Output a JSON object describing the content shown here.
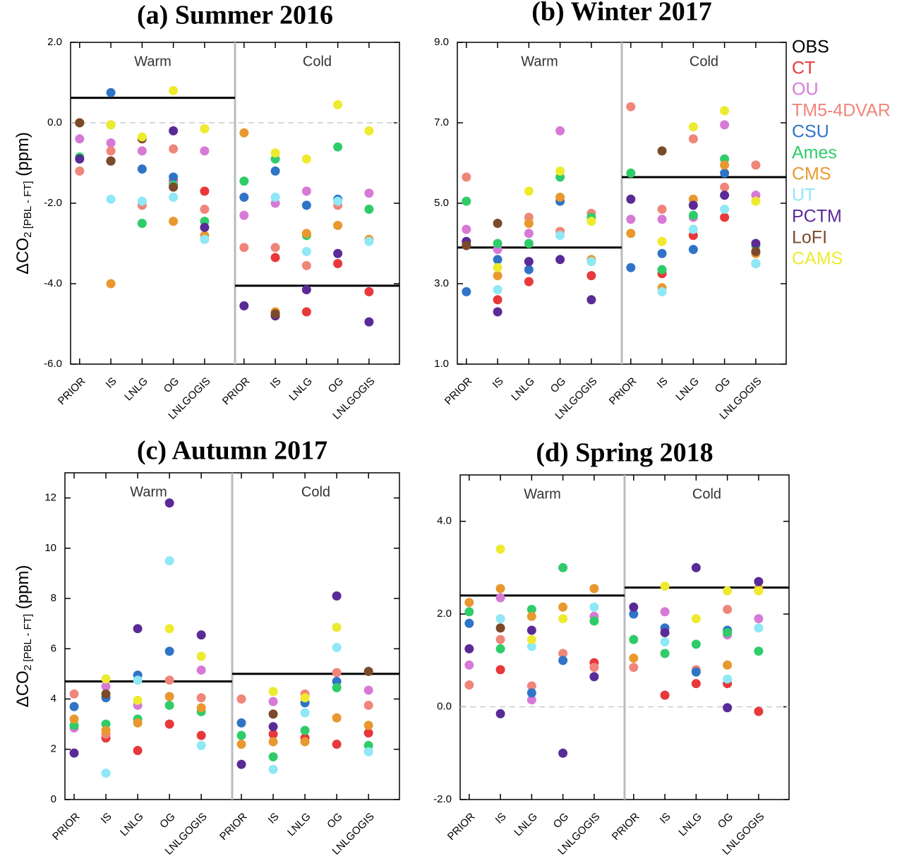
{
  "legend": [
    {
      "name": "OBS",
      "color": "#000000"
    },
    {
      "name": "CT",
      "color": "#e8383b"
    },
    {
      "name": "OU",
      "color": "#d67ad6"
    },
    {
      "name": "TM5-4DVAR",
      "color": "#f0857a"
    },
    {
      "name": "CSU",
      "color": "#2f74c6"
    },
    {
      "name": "Ames",
      "color": "#2fcc6a"
    },
    {
      "name": "CMS",
      "color": "#e8982e"
    },
    {
      "name": "UT",
      "color": "#8ee8f5"
    },
    {
      "name": "PCTM",
      "color": "#5a2a96"
    },
    {
      "name": "LoFI",
      "color": "#7a4a2a"
    },
    {
      "name": "CAMS",
      "color": "#eeea2e"
    }
  ],
  "y_label": {
    "main": "ΔCO",
    "sub": "2 [PBL - FT]",
    "unit": " (ppm)"
  },
  "chart_data": [
    {
      "type": "scatter",
      "title": "(a) Summer 2016",
      "regions": [
        "Warm",
        "Cold"
      ],
      "categories": [
        "PRIOR",
        "IS",
        "LNLG",
        "OG",
        "LNLGOGIS",
        "PRIOR",
        "IS",
        "LNLG",
        "OG",
        "LNLGOGIS"
      ],
      "ylim": [
        -6,
        2
      ],
      "yticks": [
        {
          "value": -6,
          "label": "-6.0"
        },
        {
          "value": -4,
          "label": "-4.0"
        },
        {
          "value": -2,
          "label": "-2.0"
        },
        {
          "value": 0,
          "label": "0.0"
        },
        {
          "value": 2,
          "label": "2.0"
        }
      ],
      "zero_line": true,
      "show_y_label": true,
      "show_legend": false,
      "obs": [
        0.62,
        -4.05
      ],
      "series": [
        {
          "values": [
            null,
            -0.95,
            null,
            -1.45,
            -1.7,
            null,
            -3.35,
            -4.7,
            -3.5,
            -4.2
          ]
        },
        {
          "values": [
            -0.4,
            -0.5,
            -0.7,
            -1.5,
            -0.7,
            -2.3,
            -2.0,
            -1.7,
            null,
            -1.75
          ]
        },
        {
          "values": [
            -1.2,
            -0.7,
            -2.05,
            -0.65,
            -2.15,
            -3.1,
            -3.1,
            -3.55,
            -2.05,
            null
          ]
        },
        {
          "values": [
            null,
            0.75,
            -1.15,
            -1.35,
            null,
            -1.85,
            -1.2,
            -2.05,
            -1.9,
            null
          ]
        },
        {
          "values": [
            -0.85,
            -0.05,
            -2.5,
            -1.55,
            -2.45,
            -1.45,
            -0.9,
            -2.8,
            -0.6,
            -2.15
          ]
        },
        {
          "values": [
            0.0,
            -4.0,
            null,
            -2.45,
            -2.8,
            -0.25,
            -4.7,
            -2.75,
            -2.55,
            -2.9
          ]
        },
        {
          "values": [
            null,
            -1.9,
            -1.95,
            -1.85,
            -2.9,
            null,
            -1.85,
            -3.2,
            -1.95,
            -2.95
          ]
        },
        {
          "values": [
            -0.9,
            -0.95,
            null,
            -0.2,
            -2.6,
            -4.55,
            -4.8,
            -4.15,
            -3.25,
            -4.95
          ]
        },
        {
          "values": [
            0.0,
            -0.95,
            -0.4,
            -1.6,
            null,
            null,
            -4.75,
            null,
            null,
            null
          ]
        },
        {
          "values": [
            null,
            -0.05,
            -0.35,
            0.8,
            -0.15,
            null,
            -0.75,
            -0.9,
            0.45,
            -0.2
          ]
        }
      ]
    },
    {
      "type": "scatter",
      "title": "(b) Winter 2017",
      "regions": [
        "Warm",
        "Cold"
      ],
      "categories": [
        "PRIOR",
        "IS",
        "LNLG",
        "OG",
        "LNLGOGIS",
        "PRIOR",
        "IS",
        "LNLG",
        "OG",
        "LNLGOGIS"
      ],
      "ylim": [
        1,
        9
      ],
      "yticks": [
        {
          "value": 1,
          "label": "1.0"
        },
        {
          "value": 3,
          "label": "3.0"
        },
        {
          "value": 5,
          "label": "5.0"
        },
        {
          "value": 7,
          "label": "7.0"
        },
        {
          "value": 9,
          "label": "9.0"
        }
      ],
      "zero_line": false,
      "show_y_label": false,
      "show_legend": true,
      "obs": [
        3.9,
        5.65
      ],
      "series": [
        {
          "values": [
            null,
            2.6,
            3.05,
            null,
            3.2,
            null,
            3.25,
            4.2,
            4.65,
            null
          ]
        },
        {
          "values": [
            4.35,
            3.85,
            4.25,
            6.8,
            null,
            4.6,
            4.6,
            4.65,
            6.95,
            5.2
          ]
        },
        {
          "values": [
            5.65,
            null,
            4.65,
            4.3,
            4.75,
            7.4,
            4.85,
            6.6,
            5.4,
            5.95
          ]
        },
        {
          "values": [
            2.8,
            3.6,
            3.35,
            5.05,
            null,
            3.4,
            3.75,
            3.85,
            5.75,
            3.5
          ]
        },
        {
          "values": [
            5.05,
            4.0,
            4.0,
            5.65,
            4.65,
            5.75,
            3.35,
            4.7,
            6.1,
            3.95
          ]
        },
        {
          "values": [
            3.95,
            3.2,
            4.5,
            5.15,
            3.6,
            4.25,
            2.9,
            5.1,
            5.95,
            3.75
          ]
        },
        {
          "values": [
            null,
            2.85,
            null,
            4.2,
            3.55,
            null,
            2.8,
            4.35,
            4.85,
            3.5
          ]
        },
        {
          "values": [
            4.05,
            2.3,
            3.55,
            3.6,
            2.6,
            5.1,
            null,
            4.95,
            5.2,
            4.0
          ]
        },
        {
          "values": [
            3.95,
            4.5,
            null,
            null,
            null,
            null,
            6.3,
            null,
            null,
            3.8
          ]
        },
        {
          "values": [
            null,
            3.4,
            5.3,
            5.8,
            4.55,
            null,
            4.05,
            6.9,
            7.3,
            5.05
          ]
        }
      ]
    },
    {
      "type": "scatter",
      "title": "(c) Autumn 2017",
      "regions": [
        "Warm",
        "Cold"
      ],
      "categories": [
        "PRIOR",
        "IS",
        "LNLG",
        "OG",
        "LNLGOGIS",
        "PRIOR",
        "IS",
        "LNLG",
        "OG",
        "LNLGOGIS"
      ],
      "ylim": [
        0,
        13
      ],
      "yticks": [
        0,
        2,
        4,
        6,
        8,
        10,
        12
      ],
      "zero_line": false,
      "show_y_label": true,
      "show_legend": false,
      "obs": [
        4.7,
        5.0
      ],
      "series": [
        {
          "values": [
            null,
            2.45,
            1.95,
            3.0,
            2.55,
            null,
            2.6,
            2.45,
            2.2,
            2.65
          ]
        },
        {
          "values": [
            2.85,
            4.5,
            3.75,
            null,
            5.15,
            null,
            3.9,
            null,
            null,
            4.35
          ]
        },
        {
          "values": [
            4.2,
            2.6,
            null,
            4.75,
            4.05,
            4.0,
            null,
            4.2,
            5.05,
            3.75
          ]
        },
        {
          "values": [
            3.7,
            4.05,
            4.95,
            5.9,
            null,
            3.05,
            null,
            3.85,
            4.7,
            null
          ]
        },
        {
          "values": [
            2.95,
            3.0,
            3.2,
            3.75,
            3.5,
            2.55,
            1.7,
            2.75,
            4.45,
            2.15
          ]
        },
        {
          "values": [
            3.2,
            2.75,
            3.05,
            4.1,
            3.65,
            2.2,
            2.3,
            2.3,
            3.25,
            2.95
          ]
        },
        {
          "values": [
            null,
            1.05,
            4.75,
            9.5,
            2.15,
            null,
            1.2,
            3.45,
            6.05,
            1.9
          ]
        },
        {
          "values": [
            1.85,
            null,
            6.8,
            11.8,
            6.55,
            1.4,
            2.9,
            null,
            8.1,
            null
          ]
        },
        {
          "values": [
            null,
            4.2,
            null,
            null,
            null,
            null,
            3.4,
            null,
            null,
            5.1
          ]
        },
        {
          "values": [
            null,
            4.8,
            3.95,
            6.8,
            5.7,
            null,
            4.3,
            4.05,
            6.85,
            null
          ]
        }
      ]
    },
    {
      "type": "scatter",
      "title": "(d) Spring 2018",
      "regions": [
        "Warm",
        "Cold"
      ],
      "categories": [
        "PRIOR",
        "IS",
        "LNLG",
        "OG",
        "LNLGOGIS",
        "PRIOR",
        "IS",
        "LNLG",
        "OG",
        "LNLGOGIS"
      ],
      "ylim": [
        -2,
        5
      ],
      "yticks": [
        {
          "value": -2,
          "label": "-2.0"
        },
        {
          "value": 0,
          "label": "0.0"
        },
        {
          "value": 2,
          "label": "2.0"
        },
        {
          "value": 4,
          "label": "4.0"
        }
      ],
      "zero_line": true,
      "show_y_label": false,
      "show_legend": false,
      "obs": [
        2.4,
        2.57
      ],
      "series": [
        {
          "values": [
            null,
            0.8,
            null,
            null,
            0.95,
            null,
            0.25,
            0.5,
            0.5,
            -0.1
          ]
        },
        {
          "values": [
            0.9,
            2.35,
            0.15,
            null,
            1.95,
            null,
            2.05,
            null,
            1.55,
            1.9
          ]
        },
        {
          "values": [
            0.47,
            1.45,
            0.45,
            1.15,
            0.85,
            0.85,
            null,
            0.8,
            2.1,
            null
          ]
        },
        {
          "values": [
            1.8,
            null,
            0.3,
            1.0,
            null,
            2.0,
            1.7,
            0.75,
            1.65,
            null
          ]
        },
        {
          "values": [
            2.05,
            1.25,
            2.1,
            3.0,
            1.85,
            1.45,
            1.15,
            1.35,
            1.6,
            1.2
          ]
        },
        {
          "values": [
            2.25,
            2.55,
            1.95,
            2.15,
            2.55,
            1.05,
            1.6,
            null,
            0.9,
            2.55
          ]
        },
        {
          "values": [
            null,
            1.9,
            1.3,
            null,
            2.15,
            null,
            1.4,
            null,
            0.6,
            1.7
          ]
        },
        {
          "values": [
            1.25,
            -0.15,
            1.65,
            -1.0,
            0.65,
            2.15,
            1.6,
            3.0,
            -0.02,
            2.7
          ]
        },
        {
          "values": [
            null,
            1.7,
            null,
            null,
            null,
            null,
            null,
            null,
            null,
            null
          ]
        },
        {
          "values": [
            null,
            3.4,
            1.45,
            1.9,
            null,
            null,
            2.6,
            1.9,
            2.5,
            2.5
          ]
        }
      ]
    }
  ]
}
